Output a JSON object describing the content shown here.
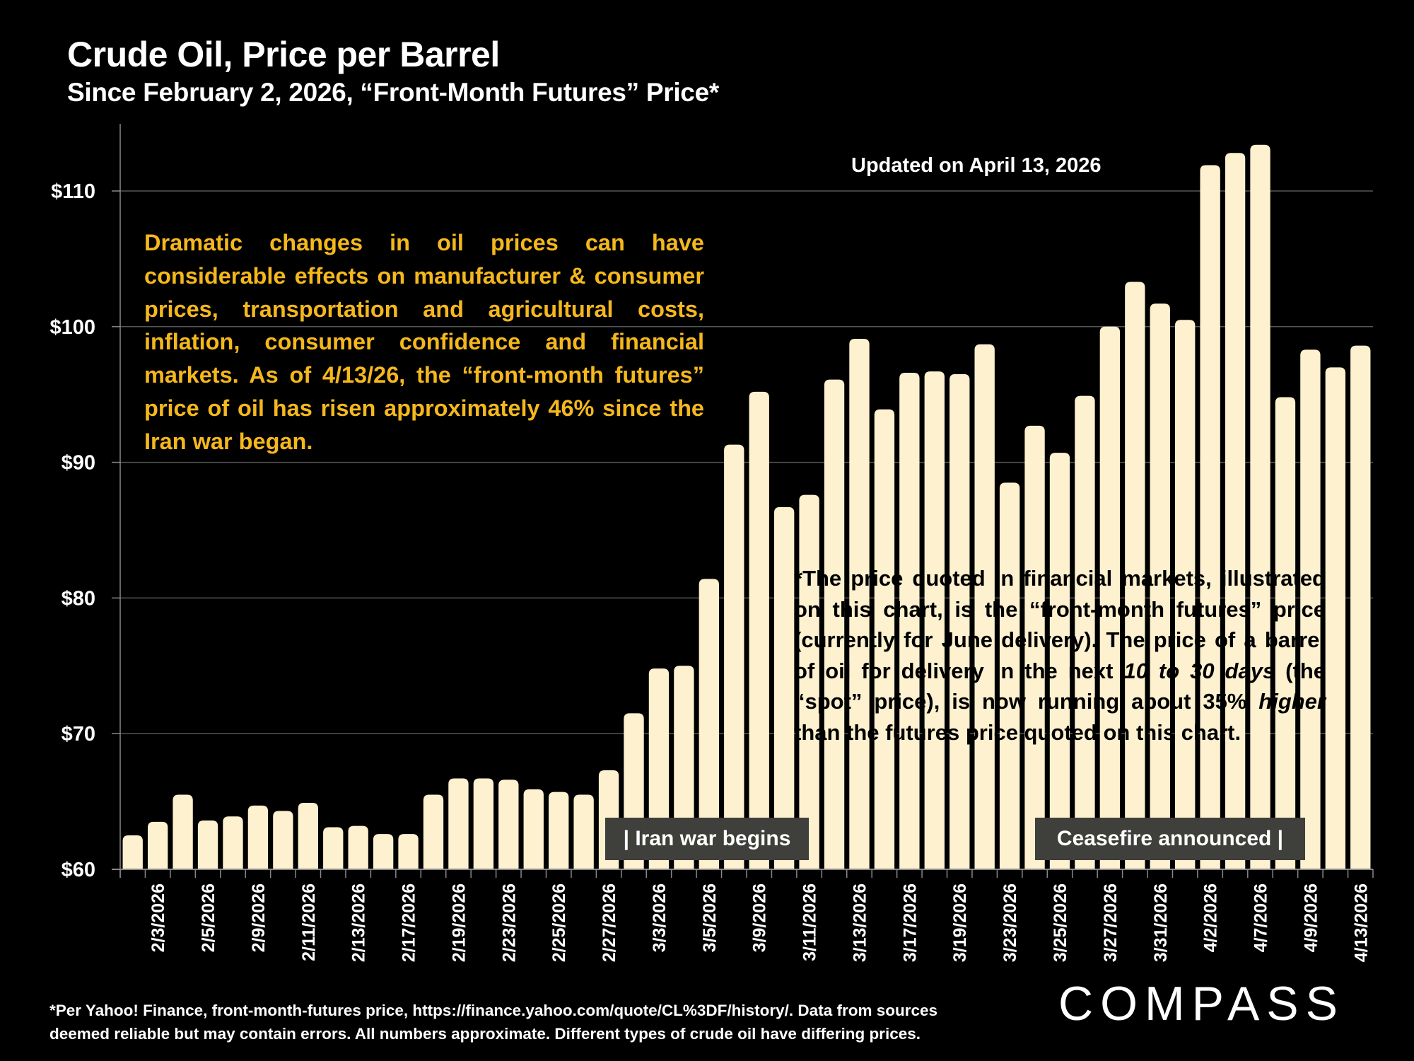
{
  "header": {
    "title": "Crude Oil, Price per Barrel",
    "subtitle": "Since February 2, 2026, “Front-Month Futures” Price*"
  },
  "updated_label": "Updated on April 13, 2026",
  "commentary": "Dramatic changes in oil prices can have considerable effects on manufacturer & consumer prices, transportation and agricultural costs, inflation, consumer confidence and financial markets. As of 4/13/26, the “front-month futures” price of oil has risen approximately 46% since the Iran war began.",
  "note": {
    "part1": "*The price quoted in financial markets, illustrated on this chart, is the “front-month futures” price (currently for June delivery). The price of a barrel of oil for delivery in the next ",
    "italic1": "10 to 30 days",
    "part2": " (the “spot” price), is now running about 35% ",
    "italic2": "higher",
    "part3": " than the futures price quoted on this chart."
  },
  "events": {
    "war_begins": "| Iran war begins",
    "ceasefire": "Ceasefire announced |"
  },
  "footer": {
    "line1": "*Per Yahoo! Finance, front-month-futures price, https://finance.yahoo.com/quote/CL%3DF/history/. Data from sources",
    "line2": "deemed reliable but may contain errors. All numbers approximate. Different types of crude oil have differing prices."
  },
  "brand": {
    "logo_text": "COMPASS"
  },
  "colors": {
    "background": "#000000",
    "bar": "#fdf1cf",
    "commentary_text": "#f5b81c",
    "event_box": "#3f3f3b",
    "gridline": "#555555"
  },
  "chart_data": {
    "type": "bar",
    "title": "Crude Oil, Price per Barrel",
    "subtitle": "Since February 2, 2026, “Front-Month Futures” Price*",
    "xlabel": "",
    "ylabel": "",
    "ylim": [
      60,
      115
    ],
    "yticks": [
      60,
      70,
      80,
      90,
      100,
      110
    ],
    "ytick_labels": [
      "$60",
      "$70",
      "$80",
      "$90",
      "$100",
      "$110"
    ],
    "grid": true,
    "legend": "none",
    "categories": [
      "2/2/2026",
      "2/3/2026",
      "2/4/2026",
      "2/5/2026",
      "2/6/2026",
      "2/9/2026",
      "2/10/2026",
      "2/11/2026",
      "2/12/2026",
      "2/13/2026",
      "2/16/2026",
      "2/17/2026",
      "2/18/2026",
      "2/19/2026",
      "2/20/2026",
      "2/23/2026",
      "2/24/2026",
      "2/25/2026",
      "2/26/2026",
      "2/27/2026",
      "3/2/2026",
      "3/3/2026",
      "3/4/2026",
      "3/5/2026",
      "3/6/2026",
      "3/9/2026",
      "3/10/2026",
      "3/11/2026",
      "3/12/2026",
      "3/13/2026",
      "3/16/2026",
      "3/17/2026",
      "3/18/2026",
      "3/19/2026",
      "3/20/2026",
      "3/23/2026",
      "3/24/2026",
      "3/25/2026",
      "3/26/2026",
      "3/27/2026",
      "3/30/2026",
      "3/31/2026",
      "4/1/2026",
      "4/2/2026",
      "4/6/2026",
      "4/7/2026",
      "4/8/2026",
      "4/9/2026",
      "4/10/2026",
      "4/13/2026"
    ],
    "shown_tick_labels": [
      "2/3/2026",
      "2/5/2026",
      "2/9/2026",
      "2/11/2026",
      "2/13/2026",
      "2/17/2026",
      "2/19/2026",
      "2/23/2026",
      "2/25/2026",
      "2/27/2026",
      "3/3/2026",
      "3/5/2026",
      "3/9/2026",
      "3/11/2026",
      "3/13/2026",
      "3/17/2026",
      "3/19/2026",
      "3/23/2026",
      "3/25/2026",
      "3/27/2026",
      "3/31/2026",
      "4/2/2026",
      "4/7/2026",
      "4/9/2026",
      "4/13/2026"
    ],
    "values": [
      62.5,
      63.5,
      65.5,
      63.6,
      63.9,
      64.7,
      64.3,
      64.9,
      63.1,
      63.2,
      62.6,
      62.6,
      65.5,
      66.7,
      66.7,
      66.6,
      65.9,
      65.7,
      65.5,
      67.3,
      71.5,
      74.8,
      75.0,
      81.4,
      91.3,
      95.2,
      86.7,
      87.6,
      96.1,
      99.1,
      93.9,
      96.6,
      96.7,
      96.5,
      98.7,
      88.5,
      92.7,
      90.7,
      94.9,
      100.0,
      103.3,
      101.7,
      100.5,
      111.9,
      112.8,
      113.4,
      94.8,
      98.3,
      97.0,
      98.6
    ],
    "annotations": [
      {
        "text": "| Iran war begins",
        "near": "2/27/2026"
      },
      {
        "text": "Ceasefire announced |",
        "near": "4/7/2026"
      },
      {
        "text": "Updated on April 13, 2026",
        "placement": "top-right"
      }
    ]
  }
}
